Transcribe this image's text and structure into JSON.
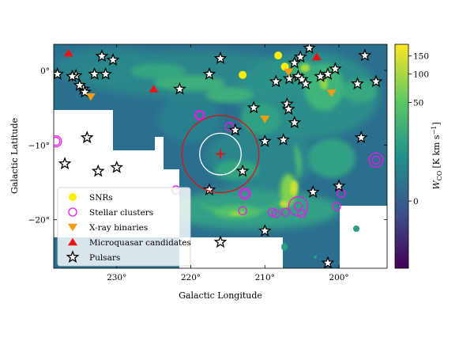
{
  "chart_data": {
    "type": "scatter",
    "background": "CO intensity map (heatmap)",
    "xlabel": "Galactic Longitude",
    "ylabel": "Galactic Latitude",
    "xlim": [
      238.5,
      193.5
    ],
    "ylim": [
      -26.5,
      3.5
    ],
    "x_ticks": [
      230,
      220,
      210,
      200
    ],
    "x_tick_labels": [
      "230°",
      "220°",
      "210°",
      "200°"
    ],
    "y_ticks": [
      0,
      -10,
      -20
    ],
    "y_tick_labels": [
      "0°",
      "−10°",
      "−20°"
    ],
    "colorbar": {
      "label": "W_CO [K km s^-1]",
      "label_main": "W",
      "label_sub": "CO",
      "label_units": "[K km s",
      "label_exp": "−1",
      "label_close": "]",
      "ticks": [
        {
          "value": 150,
          "label": "150"
        },
        {
          "value": 100,
          "label": "100"
        },
        {
          "value": 50,
          "label": "50"
        },
        {
          "value": 0,
          "label": "0"
        }
      ],
      "tick_positions": [
        0.052,
        0.132,
        0.26,
        0.7
      ],
      "colors": [
        "#440154",
        "#3b528b",
        "#21918c",
        "#5ec962",
        "#fde725"
      ]
    },
    "colormap_colors": {
      "low": "#2b6f8e",
      "mid": "#2a9d89",
      "high": "#6ccd5a",
      "peak": "#d9e230",
      "blank": "#ffffff"
    },
    "legend": {
      "placement": "lower-left",
      "entries": [
        {
          "label": "SNRs",
          "marker": "circle-filled",
          "color": "#fdee00"
        },
        {
          "label": "Stellar clusters",
          "marker": "circle-open",
          "color": "#e81ae8"
        },
        {
          "label": "X-ray binaries",
          "marker": "triangle-down",
          "color": "#f39c12"
        },
        {
          "label": "Microquasar candidates",
          "marker": "triangle-up",
          "color": "#ee1111"
        },
        {
          "label": "Pulsars",
          "marker": "star",
          "color": "#000000"
        }
      ]
    },
    "series": [
      {
        "name": "SNRs",
        "points": [
          [
            208.2,
            2.0
          ],
          [
            213.0,
            -0.6
          ],
          [
            207.3,
            0.5
          ]
        ]
      },
      {
        "name": "Stellar clusters",
        "points": [
          [
            218.8,
            -6.0
          ],
          [
            214.8,
            -7.5
          ],
          [
            238.2,
            -9.5
          ],
          [
            222.0,
            -16.0
          ],
          [
            212.7,
            -16.5
          ],
          [
            205.5,
            -18.2
          ],
          [
            205.0,
            -19.2
          ],
          [
            199.7,
            -16.5
          ],
          [
            195.0,
            -12.0
          ],
          [
            200.3,
            -18.2
          ],
          [
            209.0,
            -19.0
          ],
          [
            207.2,
            -19.0
          ],
          [
            213.0,
            -18.8
          ],
          [
            208.5,
            -19.2
          ]
        ]
      },
      {
        "name": "X-ray binaries",
        "points": [
          [
            233.5,
            -3.5
          ],
          [
            210.0,
            -6.5
          ],
          [
            201.0,
            -3.0
          ],
          [
            206.8,
            -0.2
          ]
        ]
      },
      {
        "name": "Microquasar candidates",
        "points": [
          [
            236.5,
            2.3
          ],
          [
            225.0,
            -2.5
          ],
          [
            203.0,
            1.8
          ]
        ]
      },
      {
        "name": "Pulsars",
        "points": [
          [
            238.0,
            -0.5
          ],
          [
            235.5,
            -0.7
          ],
          [
            232.0,
            1.9
          ],
          [
            230.5,
            1.4
          ],
          [
            233.0,
            -0.5
          ],
          [
            231.5,
            -0.5
          ],
          [
            234.5,
            -2.5
          ],
          [
            234.3,
            -2.9
          ],
          [
            235.0,
            -2.0
          ],
          [
            236.0,
            -0.8
          ],
          [
            221.5,
            -2.5
          ],
          [
            217.5,
            -0.5
          ],
          [
            216.0,
            1.6
          ],
          [
            211.5,
            -5.0
          ],
          [
            207.0,
            -4.5
          ],
          [
            206.8,
            -5.2
          ],
          [
            208.5,
            -1.5
          ],
          [
            206.7,
            -1.1
          ],
          [
            205.5,
            -0.8
          ],
          [
            205.0,
            -1.2
          ],
          [
            204.5,
            -1.8
          ],
          [
            204.0,
            3.0
          ],
          [
            206.0,
            1.0
          ],
          [
            205.2,
            1.8
          ],
          [
            202.5,
            -0.8
          ],
          [
            201.5,
            -0.5
          ],
          [
            200.5,
            0.2
          ],
          [
            197.5,
            -1.8
          ],
          [
            195.0,
            -1.5
          ],
          [
            196.5,
            2.0
          ],
          [
            234.0,
            -9.0
          ],
          [
            237.0,
            -12.5
          ],
          [
            232.5,
            -13.5
          ],
          [
            230.0,
            -13.0
          ],
          [
            217.5,
            -16.0
          ],
          [
            214.0,
            -8.0
          ],
          [
            210.0,
            -9.5
          ],
          [
            213.0,
            -13.5
          ],
          [
            207.5,
            -9.3
          ],
          [
            206.0,
            -7.0
          ],
          [
            203.5,
            -16.3
          ],
          [
            200.0,
            -15.5
          ],
          [
            197.0,
            -9.0
          ],
          [
            210.0,
            -21.5
          ],
          [
            216.0,
            -23.0
          ],
          [
            201.5,
            -25.8
          ]
        ]
      }
    ],
    "annotations": [
      {
        "shape": "circle-open",
        "color": "#ffffff",
        "center": [
          216.0,
          -11.2
        ],
        "radius_deg": 2.8
      },
      {
        "shape": "circle-open",
        "color": "#dd1111",
        "center": [
          216.0,
          -11.2
        ],
        "radius_deg": 5.2
      },
      {
        "shape": "plus",
        "color": "#ee1111",
        "center": [
          216.0,
          -11.2
        ]
      }
    ]
  }
}
